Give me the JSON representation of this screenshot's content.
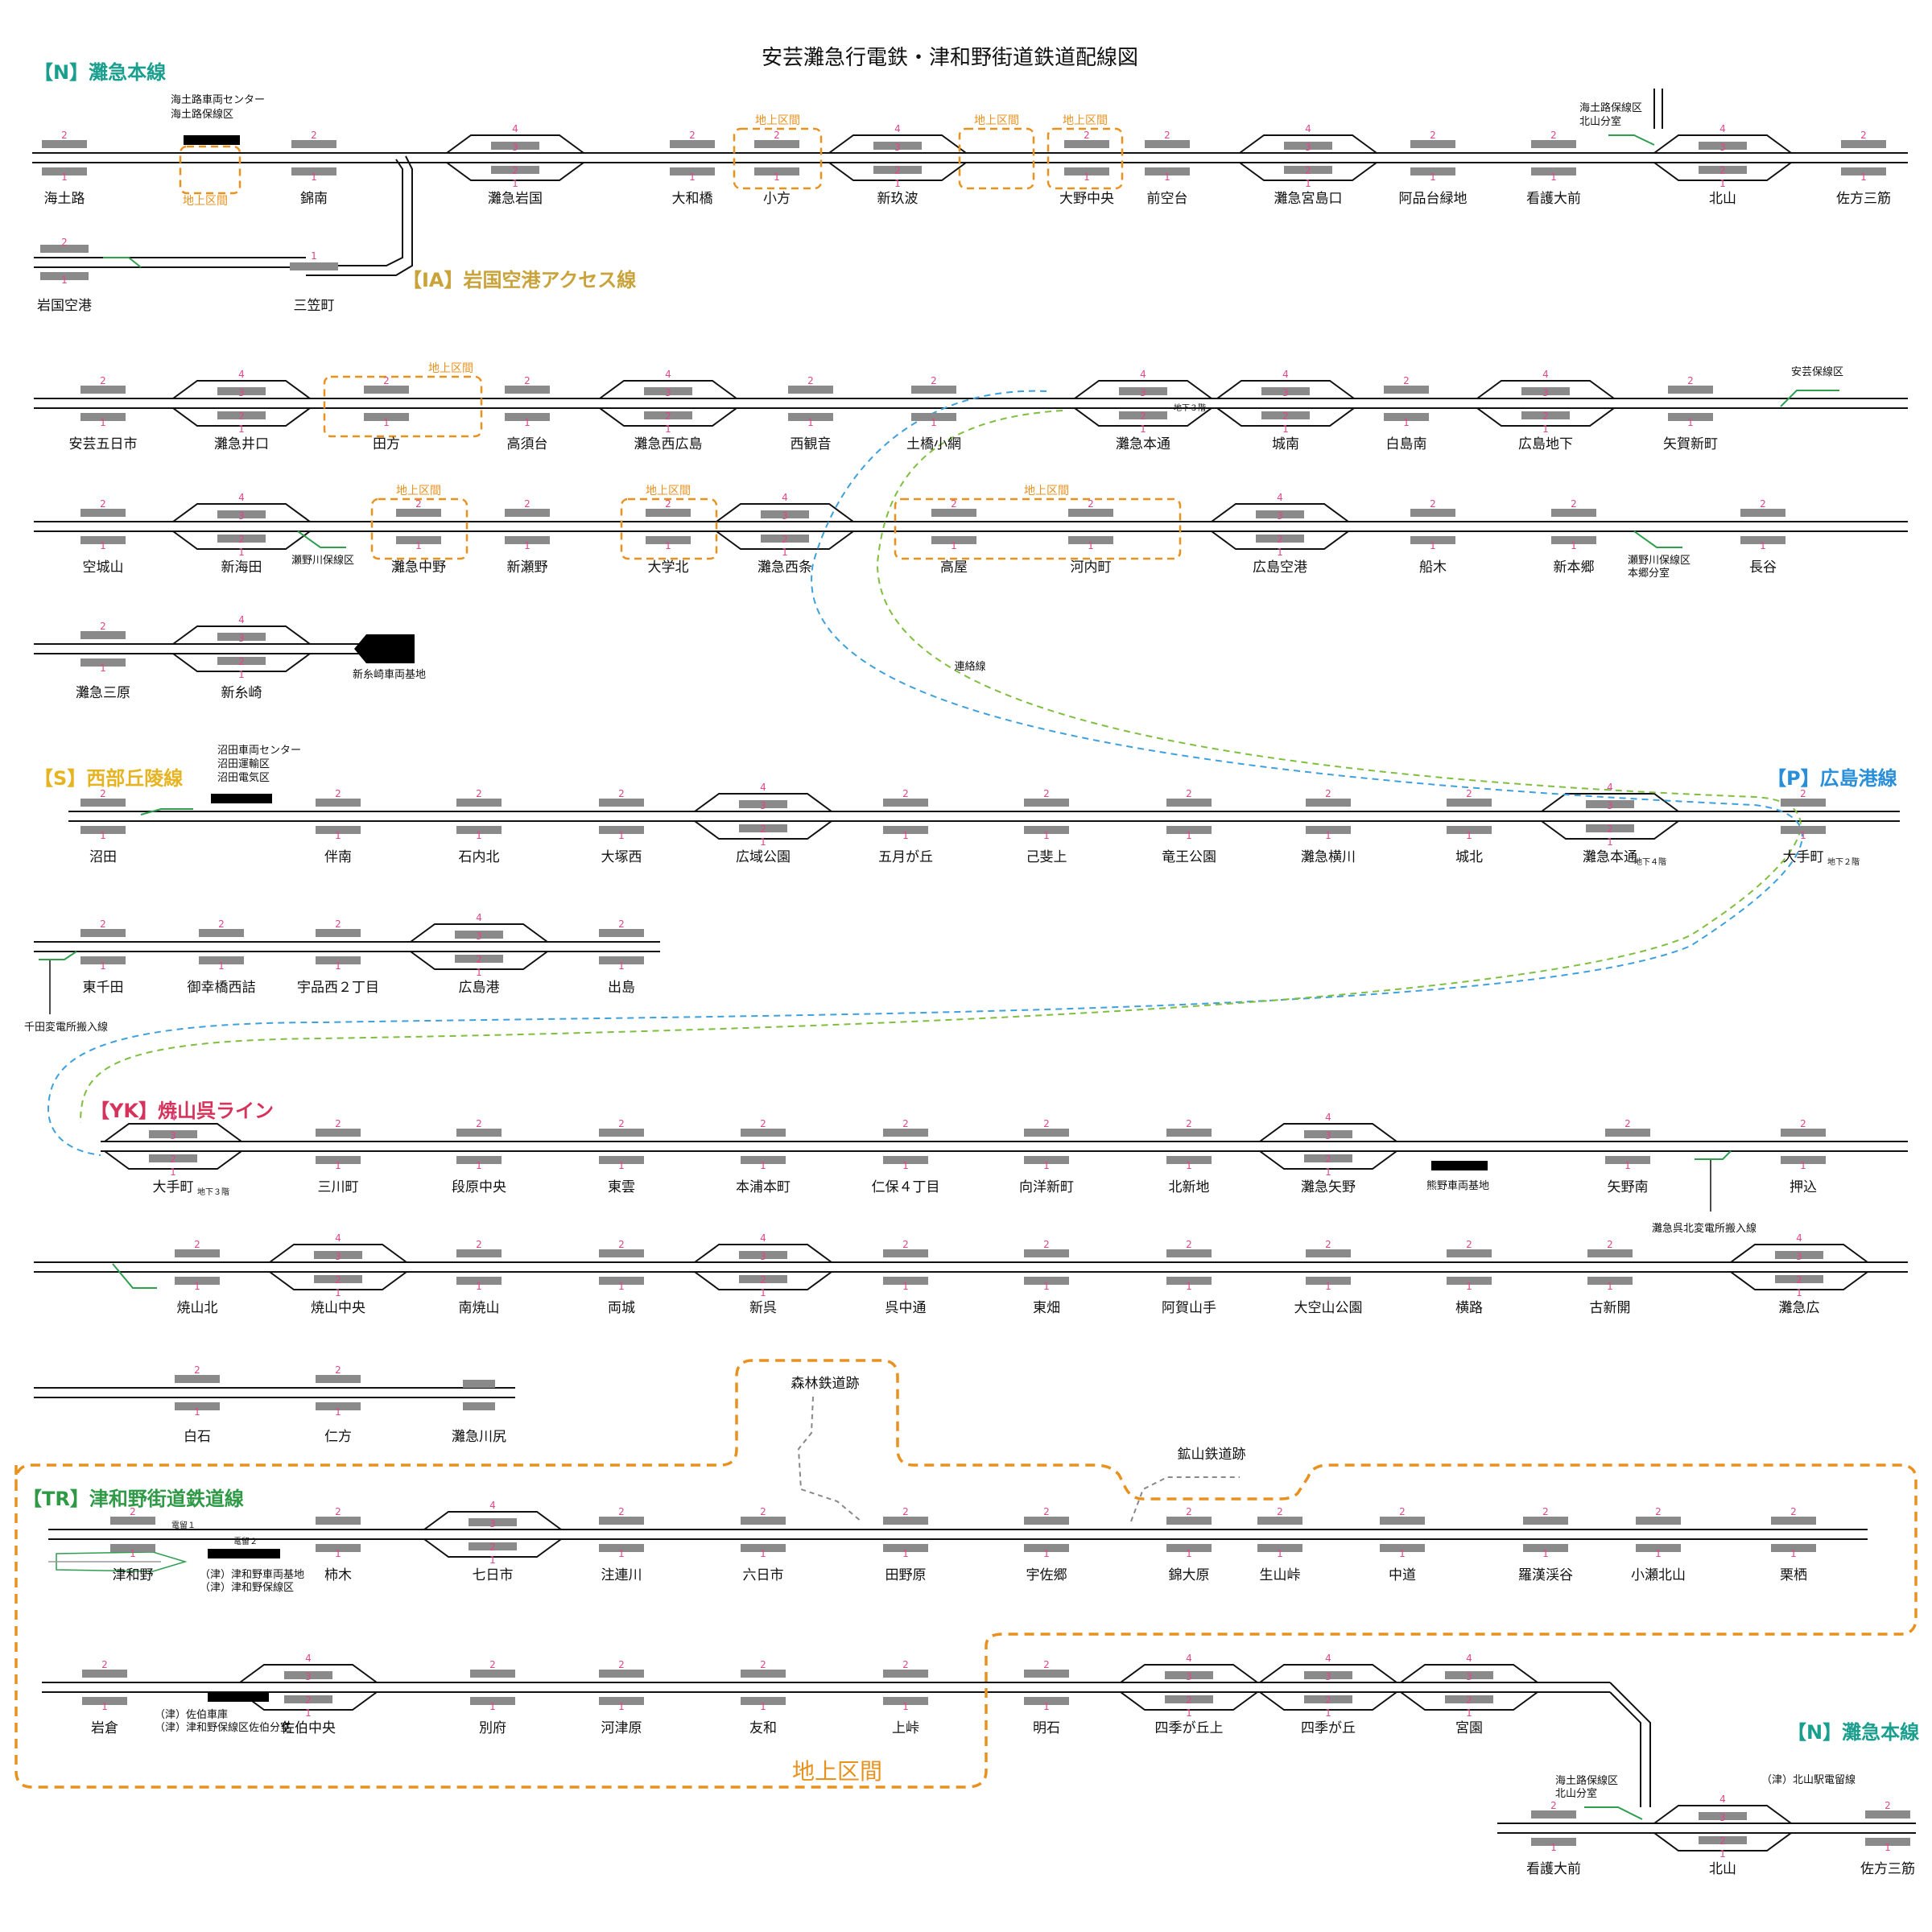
{
  "title": "安芸灘急行電鉄・津和野街道鉄道配線図",
  "colors": {
    "track": "#111111",
    "platform": "#8a8a8a",
    "track_number": "#e0468a",
    "surface_section": "#e8911f",
    "depot_branch": "#2e9e4f",
    "link_blue": "#3ea0dc",
    "link_green": "#7fbf3f",
    "abandoned": "#888888",
    "line_N": "#1a9f8f",
    "line_IA": "#c9a33a",
    "line_S": "#e6b422",
    "line_P": "#2a8fd8",
    "line_YK": "#d6335c",
    "line_TR": "#2f9a46"
  },
  "line_labels": {
    "N": "【N】灘急本線",
    "IA": "【IA】岩国空港アクセス線",
    "S": "【S】西部丘陵線",
    "P": "【P】広島港線",
    "YK": "【YK】焼山呉ライン",
    "TR": "【TR】津和野街道鉄道線",
    "N2": "【N】灘急本線"
  },
  "rows": {
    "n1": [
      "海土路",
      "錦南",
      "灘急岩国",
      "大和橋",
      "小方",
      "新玖波",
      "大野中央",
      "前空台",
      "灘急宮島口",
      "阿品台緑地",
      "看護大前",
      "北山",
      "佐方三筋"
    ],
    "ia": [
      "岩国空港",
      "三笠町"
    ],
    "n2": [
      "安芸五日市",
      "灘急井口",
      "田方",
      "高須台",
      "灘急西広島",
      "西観音",
      "土橋小網",
      "灘急本通",
      "城南",
      "白島南",
      "広島地下",
      "矢賀新町"
    ],
    "n3": [
      "空城山",
      "新海田",
      "灘急中野",
      "新瀬野",
      "大学北",
      "灘急西条",
      "高屋",
      "河内町",
      "広島空港",
      "船木",
      "新本郷",
      "長谷"
    ],
    "n4": [
      "灘急三原",
      "新糸崎"
    ],
    "s1": [
      "沼田",
      "伴南",
      "石内北",
      "大塚西",
      "広域公園",
      "五月が丘",
      "己斐上",
      "竜王公園",
      "灘急横川",
      "城北",
      "灘急本通",
      "大手町"
    ],
    "p1": [
      "東千田",
      "御幸橋西詰",
      "宇品西２丁目",
      "広島港",
      "出島"
    ],
    "yk1": [
      "大手町",
      "三川町",
      "段原中央",
      "東雲",
      "本浦本町",
      "仁保４丁目",
      "向洋新町",
      "北新地",
      "灘急矢野",
      "矢野南",
      "押込"
    ],
    "yk2": [
      "焼山北",
      "焼山中央",
      "南焼山",
      "両城",
      "新呉",
      "呉中通",
      "東畑",
      "阿賀山手",
      "大空山公園",
      "横路",
      "古新開",
      "灘急広"
    ],
    "yk3": [
      "白石",
      "仁方",
      "灘急川尻"
    ],
    "tr1": [
      "津和野",
      "柿木",
      "七日市",
      "注連川",
      "六日市",
      "田野原",
      "宇佐郷",
      "錦大原",
      "生山峠",
      "中道",
      "羅漢渓谷",
      "小瀬北山",
      "栗栖"
    ],
    "tr2": [
      "岩倉",
      "佐伯中央",
      "別府",
      "河津原",
      "友和",
      "上峠",
      "明石",
      "四季が丘上",
      "四季が丘",
      "宮園"
    ],
    "n5": [
      "看護大前",
      "北山",
      "佐方三筋"
    ]
  },
  "station_notes": {
    "underground_3f": "地下３階",
    "underground_4f": "地下４階",
    "underground_2f": "地下２階"
  },
  "facilities": {
    "kaidoji_depot": "海土路車両センター",
    "kaidoji_maint": "海土路保線区",
    "kaidoji_kitayama": "海土路保線区",
    "kitayama_branch": "北山分室",
    "aki_maint": "安芸保線区",
    "senogawa_maint": "瀬野川保線区",
    "senogawa_hongo": "瀬野川保線区",
    "hongo_branch": "本郷分室",
    "shinitozaki_depot": "新糸崎車両基地",
    "numata_center": "沼田車両センター",
    "numata_transport": "沼田運輸区",
    "numata_electric": "沼田電気区",
    "senda_substation": "千田変電所搬入線",
    "kumano_depot": "熊野車両基地",
    "kure_substation": "灘急呉北変電所搬入線",
    "tsuwano_depot": "（津）津和野車両基地",
    "tsuwano_maint": "（津）津和野保線区",
    "saeki_depot": "（津）佐伯車庫",
    "saeki_maint": "（津）津和野保線区佐伯分室",
    "kitayama_siding": "（津）北山駅電留線",
    "kaidoji_kitayama2": "海土路保線区",
    "kitayama_branch2": "北山分室"
  },
  "surface_label": "地上区間",
  "surface_label_big": "地上区間",
  "connection_label": "連絡線",
  "forest_railway": "森林鉄道跡",
  "mine_railway": "鉱山鉄道跡",
  "tsuwano_marks": [
    "電留１",
    "電留２"
  ]
}
